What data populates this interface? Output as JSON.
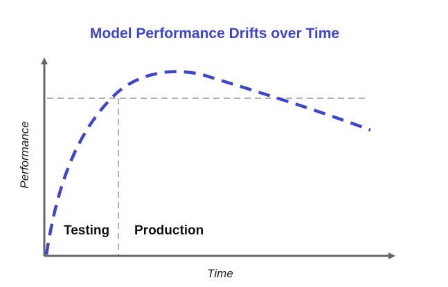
{
  "title": "Model Performance Drifts over Time",
  "xlabel": "Time",
  "ylabel": "Performance",
  "phases": [
    "Testing",
    "Production"
  ],
  "colors": {
    "title": "#4046C9",
    "curve": "#3F46C8",
    "axis": "#666666",
    "guide": "#888888"
  }
}
